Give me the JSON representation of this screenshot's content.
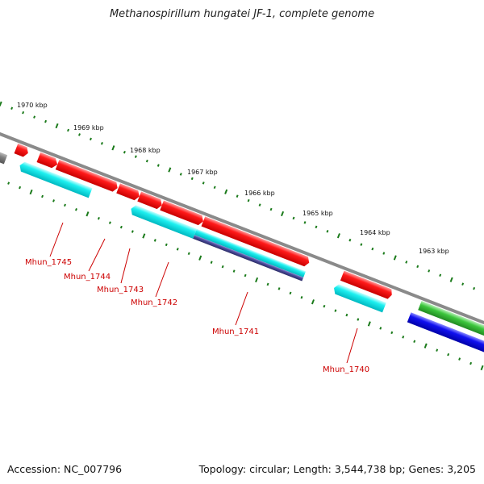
{
  "title": "Methanospirillum hungatei JF-1, complete genome",
  "footer": {
    "accession": "Accession: NC_007796",
    "summary": "Topology: circular; Length: 3,544,738 bp; Genes: 3,205"
  },
  "colors": {
    "backbone": "#888888",
    "tick": "#1a7a1a",
    "forward_gene": "#ee0000",
    "reverse_gene": "#00dddd",
    "other_reverse": "#444488",
    "green_feature": "#33bb33",
    "blue_feature": "#0000ee",
    "grey_feature": "#777777",
    "label": "#cc0000"
  },
  "ruler": {
    "labels": [
      "1970 kbp",
      "1969 kbp",
      "1968 kbp",
      "1967 kbp",
      "1966 kbp",
      "1965 kbp",
      "1964 kbp",
      "1963 kbp"
    ]
  },
  "genes": [
    {
      "name": "Mhun_1745"
    },
    {
      "name": "Mhun_1744"
    },
    {
      "name": "Mhun_1743"
    },
    {
      "name": "Mhun_1742"
    },
    {
      "name": "Mhun_1741"
    },
    {
      "name": "Mhun_1740"
    }
  ]
}
